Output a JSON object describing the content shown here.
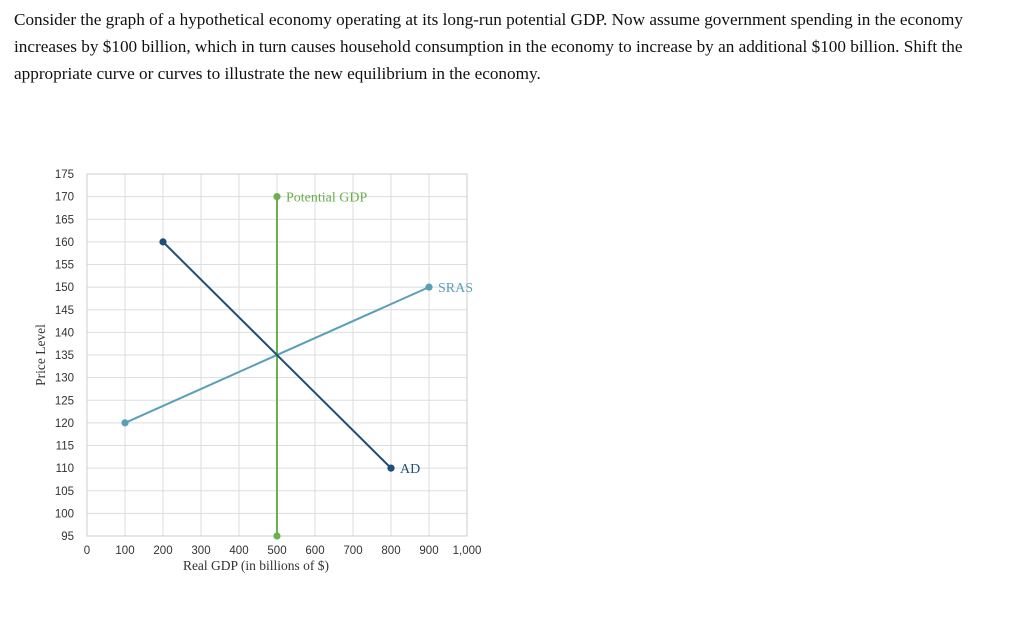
{
  "question": {
    "text": "Consider the graph of a hypothetical economy operating at its long-run potential GDP. Now assume government spending in the economy increases by $100 billion, which in turn causes household consumption in the economy to increase by an additional $100 billion. Shift the appropriate curve or curves to illustrate the new equilibrium in the economy."
  },
  "chart_data": {
    "type": "line",
    "xlabel": "Real GDP (in billions of $)",
    "ylabel": "Price Level",
    "xlim": [
      0,
      1000
    ],
    "ylim": [
      95,
      175
    ],
    "x_ticks": [
      0,
      100,
      200,
      300,
      400,
      500,
      600,
      700,
      800,
      900,
      1000
    ],
    "x_tick_labels": [
      "0",
      "100",
      "200",
      "300",
      "400",
      "500",
      "600",
      "700",
      "800",
      "900",
      "1,000"
    ],
    "y_ticks": [
      95,
      100,
      105,
      110,
      115,
      120,
      125,
      130,
      135,
      140,
      145,
      150,
      155,
      160,
      165,
      170,
      175
    ],
    "y_tick_labels": [
      "95",
      "100",
      "105",
      "110",
      "115",
      "120",
      "125",
      "130",
      "135",
      "140",
      "145",
      "150",
      "155",
      "160",
      "165",
      "170",
      "175"
    ],
    "grid": true,
    "series": [
      {
        "name": "Potential GDP",
        "color": "#6ab04c",
        "points": [
          [
            500,
            95
          ],
          [
            500,
            170
          ]
        ],
        "label_at": "end"
      },
      {
        "name": "SRAS",
        "color": "#5b9fb5",
        "points": [
          [
            100,
            120
          ],
          [
            900,
            150
          ]
        ],
        "label_at": "end"
      },
      {
        "name": "AD",
        "color": "#1f4e79",
        "points": [
          [
            200,
            160
          ],
          [
            800,
            110
          ]
        ],
        "label_at": "end"
      }
    ]
  }
}
